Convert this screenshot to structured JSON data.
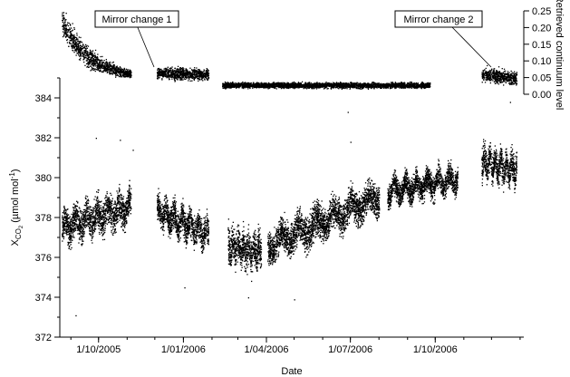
{
  "chart_data": [
    {
      "type": "scatter",
      "name_role": "lower panel",
      "title": "",
      "xlabel": "Date",
      "ylabel_main": "X",
      "ylabel_sub": "CO",
      "ylabel_sub2": "2",
      "ylabel_unit_a": " (µmol mol",
      "ylabel_unit_sup": "-1",
      "ylabel_unit_b": ")",
      "x_ticks": [
        "1/10/2005",
        "1/01/2006",
        "1/04/2006",
        "1/07/2006",
        "1/10/2006"
      ],
      "xlim": [
        "2005-08-20",
        "2007-01-05"
      ],
      "ylim": [
        372,
        385
      ],
      "y_ticks": [
        "372",
        "374",
        "376",
        "378",
        "380",
        "382",
        "384"
      ],
      "grid": false,
      "segments": [
        {
          "start": "2005-08-22",
          "end": "2005-11-05",
          "y_start": 377.5,
          "y_end": 378.6,
          "spread": 1.2
        },
        {
          "start": "2005-12-03",
          "end": "2006-01-28",
          "y_start": 378.3,
          "y_end": 377.2,
          "spread": 1.1
        },
        {
          "start": "2006-02-18",
          "end": "2006-03-26",
          "y_start": 376.6,
          "y_end": 376.3,
          "spread": 1.3
        },
        {
          "start": "2006-04-02",
          "end": "2006-08-01",
          "y_start": 376.6,
          "y_end": 379.1,
          "spread": 1.2
        },
        {
          "start": "2006-08-10",
          "end": "2006-10-25",
          "y_start": 379.3,
          "y_end": 380.0,
          "spread": 0.9
        },
        {
          "start": "2006-11-20",
          "end": "2006-12-28",
          "y_start": 380.8,
          "y_end": 380.4,
          "spread": 1.1
        }
      ],
      "outliers": [
        {
          "x": "2005-09-06",
          "y": 373.1
        },
        {
          "x": "2005-09-28",
          "y": 382.0
        },
        {
          "x": "2005-10-24",
          "y": 381.9
        },
        {
          "x": "2005-11-07",
          "y": 381.4
        },
        {
          "x": "2006-03-12",
          "y": 374.0
        },
        {
          "x": "2006-05-01",
          "y": 373.9
        },
        {
          "x": "2006-06-28",
          "y": 383.3
        },
        {
          "x": "2006-07-01",
          "y": 381.8
        },
        {
          "x": "2006-12-21",
          "y": 383.8
        },
        {
          "x": "2006-01-02",
          "y": 374.5
        }
      ]
    },
    {
      "type": "scatter",
      "name_role": "upper panel",
      "title": "",
      "ylabel": "Retrieved continuum level",
      "ylim": [
        0.0,
        0.25
      ],
      "y_ticks": [
        "0.00",
        "0.05",
        "0.10",
        "0.15",
        "0.20",
        "0.25"
      ],
      "segments": [
        {
          "start": "2005-08-22",
          "end": "2005-11-05",
          "y_start": 0.22,
          "y_end": 0.05,
          "spread": 0.04,
          "decay": true
        },
        {
          "start": "2005-12-03",
          "end": "2006-01-28",
          "y_start": 0.065,
          "y_end": 0.06,
          "spread": 0.025
        },
        {
          "start": "2006-02-12",
          "end": "2006-09-25",
          "y_start": 0.028,
          "y_end": 0.028,
          "spread": 0.012
        },
        {
          "start": "2006-11-20",
          "end": "2006-12-28",
          "y_start": 0.06,
          "y_end": 0.05,
          "spread": 0.03
        }
      ],
      "annotations": [
        {
          "text": "Mirror change 1",
          "x": "2005-11-30",
          "y": 0.072
        },
        {
          "text": "Mirror change 2",
          "x": "2006-11-22",
          "y": 0.07
        }
      ]
    }
  ]
}
